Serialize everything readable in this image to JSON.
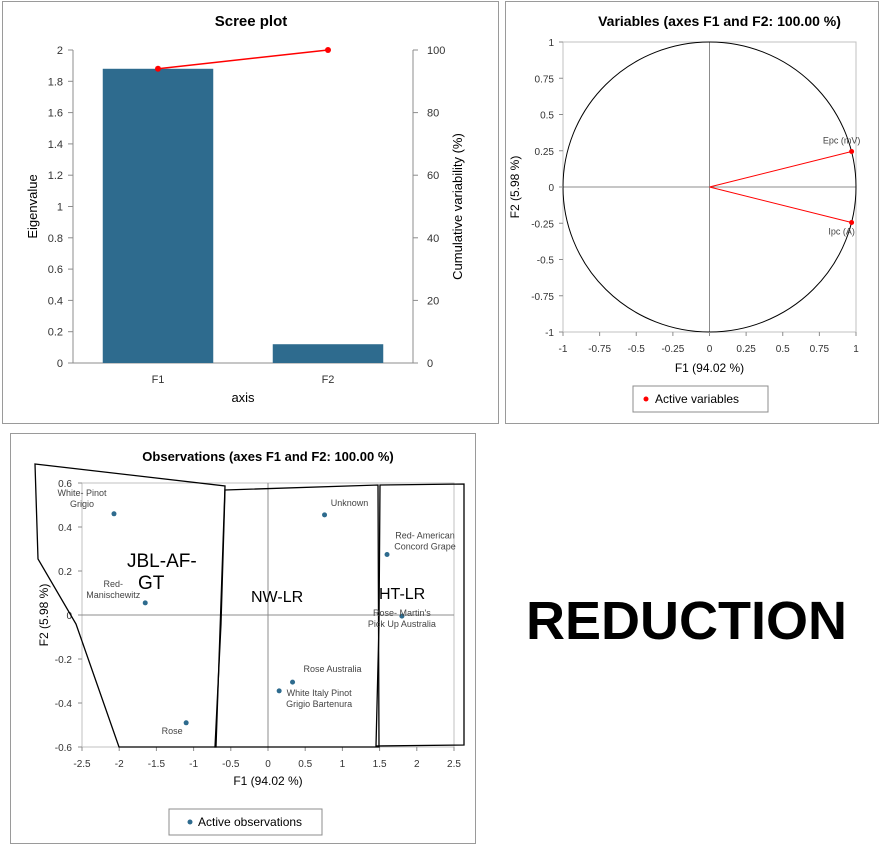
{
  "reduction_label": "REDUCTION",
  "chart_data": [
    {
      "type": "bar",
      "title": "Scree plot",
      "xlabel": "axis",
      "ylabel": "Eigenvalue",
      "y2label": "Cumulative variability (%)",
      "categories": [
        "F1",
        "F2"
      ],
      "values": [
        1.88,
        0.12
      ],
      "ylim": [
        0,
        2
      ],
      "yticks": [
        "0",
        "0.2",
        "0.4",
        "0.6",
        "0.8",
        "1",
        "1.2",
        "1.4",
        "1.6",
        "1.8",
        "2"
      ],
      "y2lim": [
        0,
        100
      ],
      "y2ticks": [
        "0",
        "20",
        "40",
        "60",
        "80",
        "100"
      ],
      "line_series": {
        "values": [
          94.02,
          100
        ]
      },
      "bar_color": "#2e6b8e",
      "line_color": "#ff0000",
      "grid": false
    },
    {
      "type": "scatter",
      "title": "Variables (axes F1 and F2: 100.00 %)",
      "xlabel": "F1 (94.02 %)",
      "ylabel": "F2 (5.98 %)",
      "xlim": [
        -1,
        1
      ],
      "ylim": [
        -1,
        1
      ],
      "xticks": [
        "-1",
        "-0.75",
        "-0.5",
        "-0.25",
        "0",
        "0.25",
        "0.5",
        "0.75",
        "1"
      ],
      "yticks": [
        "-1",
        "-0.75",
        "-0.5",
        "-0.25",
        "0",
        "0.25",
        "0.5",
        "0.75",
        "1"
      ],
      "legend": "Active variables",
      "legend_position": "bottom",
      "point_color": "#ff0000",
      "points": [
        {
          "label": "Epc (mV)",
          "x": 0.97,
          "y": 0.245
        },
        {
          "label": "Ipc (A)",
          "x": 0.97,
          "y": -0.245
        }
      ],
      "grid": false
    },
    {
      "type": "scatter",
      "title": "Observations (axes F1 and F2: 100.00 %)",
      "xlabel": "F1 (94.02 %)",
      "ylabel": "F2 (5.98 %)",
      "xlim": [
        -2.5,
        2.5
      ],
      "ylim": [
        -0.6,
        0.6
      ],
      "xticks": [
        "-2.5",
        "-2",
        "-1.5",
        "-1",
        "-0.5",
        "0",
        "0.5",
        "1",
        "1.5",
        "2",
        "2.5"
      ],
      "yticks": [
        "-0.6",
        "-0.4",
        "-0.2",
        "0",
        "0.2",
        "0.4",
        "0.6"
      ],
      "legend": "Active observations",
      "legend_position": "bottom",
      "point_color": "#2e6b8e",
      "points": [
        {
          "label": "White- Pinot Grigio",
          "x": -2.07,
          "y": 0.46
        },
        {
          "label": "Red- Manischewitz",
          "x": -1.65,
          "y": 0.055
        },
        {
          "label": "Rose",
          "x": -1.1,
          "y": -0.49
        },
        {
          "label": "Unknown",
          "x": 0.76,
          "y": 0.455
        },
        {
          "label": "Red- American Concord Grape",
          "x": 1.6,
          "y": 0.275
        },
        {
          "label": "Rose- Martin's Pick Up Australia",
          "x": 1.8,
          "y": -0.005
        },
        {
          "label": "Rose Australia",
          "x": 0.33,
          "y": -0.305
        },
        {
          "label": "White Italy Pinot Grigio Bartenura",
          "x": 0.15,
          "y": -0.345
        }
      ],
      "groups": [
        {
          "label": "JBL-AF-GT"
        },
        {
          "label": "NW-LR"
        },
        {
          "label": "HT-LR"
        }
      ],
      "grid": false
    }
  ]
}
